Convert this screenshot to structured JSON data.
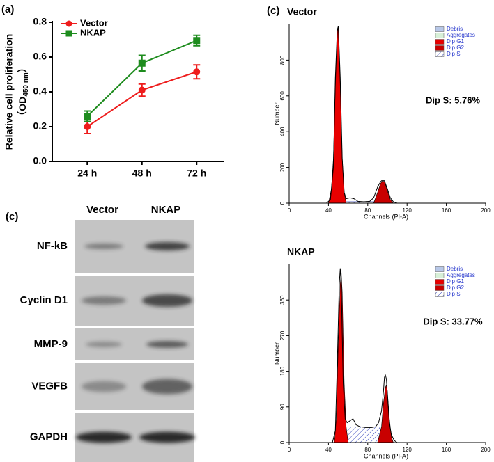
{
  "chart_data": [
    {
      "type": "line",
      "panel_label": "(a)",
      "ylabel": [
        "Relative cell proliferation",
        "（OD",
        "450 nm",
        "）"
      ],
      "categories": [
        "24 h",
        "48 h",
        "72 h"
      ],
      "series": [
        {
          "name": "Vector",
          "color": "#ee1c1c",
          "marker": "circle",
          "values": [
            0.2,
            0.41,
            0.515
          ],
          "errors": [
            0.04,
            0.035,
            0.04
          ]
        },
        {
          "name": "NKAP",
          "color": "#1e8c1e",
          "marker": "square",
          "values": [
            0.26,
            0.565,
            0.695
          ],
          "errors": [
            0.03,
            0.045,
            0.03
          ]
        }
      ],
      "ylim": [
        0,
        0.8
      ],
      "yticks": [
        {
          "value": 0,
          "label": "0.0"
        },
        0.2,
        0.4,
        0.6,
        0.8
      ]
    },
    {
      "type": "area",
      "panel_label": "(c)",
      "title": "Vector",
      "annotation": "Dip S: 5.76%",
      "xlabel": "Channels (PI-A)",
      "ylabel": "Number",
      "xlim": [
        0,
        200
      ],
      "xticks": [
        0,
        40,
        80,
        120,
        160,
        200
      ],
      "ylim": [
        0,
        1000
      ],
      "yticks": [
        0,
        200,
        400,
        600,
        800
      ],
      "trace": {
        "color": "#000000",
        "x": [
          38,
          42,
          45,
          47,
          49,
          50,
          52,
          54,
          56,
          58,
          62,
          66,
          70,
          76,
          82,
          86,
          90,
          93,
          95,
          97,
          100,
          103,
          106,
          110
        ],
        "values": [
          0,
          20,
          200,
          700,
          970,
          990,
          700,
          250,
          60,
          25,
          30,
          25,
          10,
          8,
          10,
          30,
          90,
          120,
          130,
          125,
          80,
          30,
          8,
          0
        ]
      },
      "series": [
        {
          "name": "Debris",
          "color": "#b8c8e8",
          "x": [],
          "values": []
        },
        {
          "name": "Aggregates",
          "color": "#d8f0d8",
          "x": [],
          "values": []
        },
        {
          "name": "Dip G1",
          "color": "#e80000",
          "x": [
            40,
            43,
            45,
            47,
            49,
            50,
            52,
            54,
            56,
            58
          ],
          "values": [
            0,
            80,
            250,
            650,
            960,
            985,
            650,
            250,
            60,
            0
          ]
        },
        {
          "name": "Dip G2",
          "color": "#c80000",
          "x": [
            86,
            90,
            93,
            95,
            97,
            100,
            103,
            106
          ],
          "values": [
            0,
            60,
            110,
            125,
            120,
            70,
            20,
            0
          ]
        },
        {
          "name": "Dip S",
          "color": "#3344bb",
          "fill": "hatch",
          "x": [
            55,
            56,
            88,
            89
          ],
          "values": [
            0,
            8,
            8,
            0
          ]
        }
      ]
    },
    {
      "type": "area",
      "title": "NKAP",
      "annotation": "Dip S: 33.77%",
      "xlabel": "Channels (PI-A)",
      "ylabel": "Number",
      "xlim": [
        0,
        200
      ],
      "xticks": [
        0,
        40,
        80,
        120,
        160,
        200
      ],
      "ylim": [
        0,
        450
      ],
      "yticks": [
        0,
        90,
        180,
        270,
        360
      ],
      "trace": {
        "color": "#000000",
        "x": [
          44,
          47,
          49,
          51,
          52,
          53,
          55,
          57,
          59,
          62,
          65,
          68,
          72,
          78,
          84,
          88,
          91,
          94,
          96,
          97,
          98,
          99,
          100,
          102,
          104,
          107,
          110
        ],
        "values": [
          0,
          30,
          200,
          400,
          440,
          400,
          150,
          60,
          50,
          55,
          60,
          45,
          40,
          38,
          38,
          40,
          50,
          80,
          130,
          165,
          170,
          160,
          120,
          50,
          20,
          5,
          0
        ]
      },
      "series": [
        {
          "name": "Debris",
          "color": "#b8c8e8",
          "x": [],
          "values": []
        },
        {
          "name": "Aggregates",
          "color": "#d8f0d8",
          "x": [],
          "values": []
        },
        {
          "name": "Dip G1",
          "color": "#e80000",
          "x": [
            46,
            48,
            50,
            52,
            53,
            54,
            56,
            58,
            60
          ],
          "values": [
            0,
            60,
            250,
            400,
            430,
            380,
            150,
            40,
            0
          ]
        },
        {
          "name": "Dip G2",
          "color": "#c80000",
          "x": [
            90,
            94,
            96,
            98,
            99,
            100,
            102,
            104,
            106
          ],
          "values": [
            0,
            40,
            100,
            140,
            145,
            130,
            60,
            15,
            0
          ]
        },
        {
          "name": "Dip S",
          "color": "#3344bb",
          "fill": "hatch",
          "x": [
            55,
            57,
            92,
            95
          ],
          "values": [
            0,
            40,
            40,
            0
          ]
        }
      ]
    }
  ],
  "blot": {
    "panel_label": "(c)",
    "columns": [
      "Vector",
      "NKAP"
    ],
    "rows": [
      "NF-kB",
      "Cyclin D1",
      "MMP-9",
      "VEGFB",
      "GAPDH"
    ]
  }
}
